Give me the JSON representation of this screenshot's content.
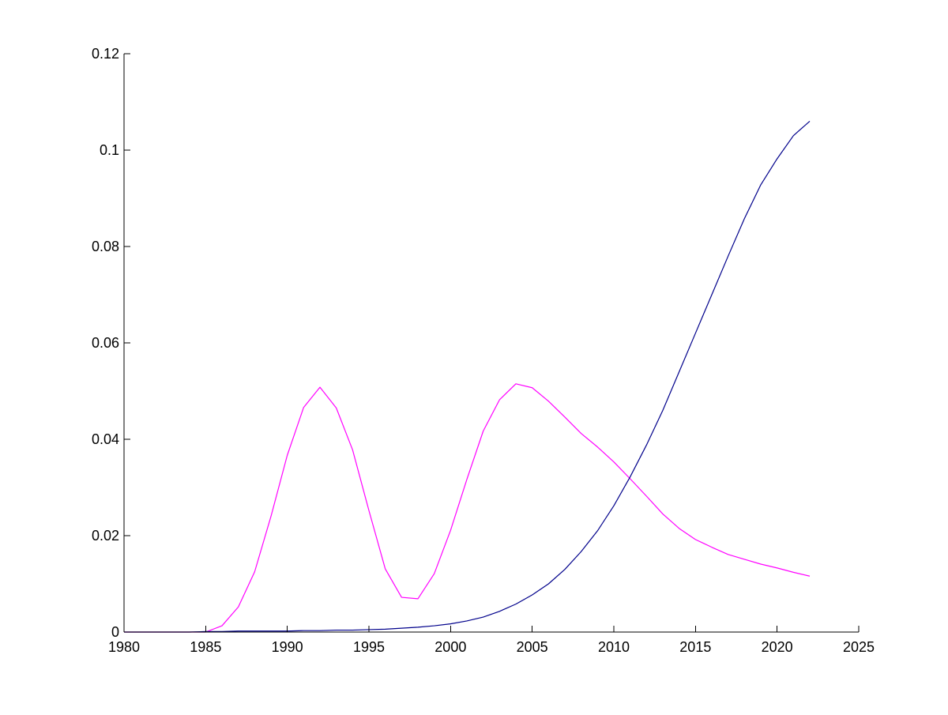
{
  "chart_data": {
    "type": "line",
    "title": "",
    "xlabel": "",
    "ylabel": "",
    "xlim": [
      1980,
      2025
    ],
    "ylim": [
      0,
      0.12
    ],
    "grid": false,
    "legend": "none",
    "x_ticks": [
      1980,
      1985,
      1990,
      1995,
      2000,
      2005,
      2010,
      2015,
      2020,
      2025
    ],
    "x_tick_labels": [
      "1980",
      "1985",
      "1990",
      "1995",
      "2000",
      "2005",
      "2010",
      "2015",
      "2020",
      "2025"
    ],
    "y_ticks": [
      0,
      0.02,
      0.04,
      0.06,
      0.08,
      0.1,
      0.12
    ],
    "y_tick_labels": [
      "0",
      "0.02",
      "0.04",
      "0.06",
      "0.08",
      "0.1",
      "0.12"
    ],
    "x": [
      1980,
      1981,
      1982,
      1983,
      1984,
      1985,
      1986,
      1987,
      1988,
      1989,
      1990,
      1991,
      1992,
      1993,
      1994,
      1995,
      1996,
      1997,
      1998,
      1999,
      2000,
      2001,
      2002,
      2003,
      2004,
      2005,
      2006,
      2007,
      2008,
      2009,
      2010,
      2011,
      2012,
      2013,
      2014,
      2015,
      2016,
      2017,
      2018,
      2019,
      2020,
      2021,
      2022
    ],
    "series": [
      {
        "color": "#ff00ff",
        "values": [
          0,
          0,
          0,
          0,
          0,
          0,
          0.0013,
          0.0052,
          0.0125,
          0.024,
          0.0367,
          0.0466,
          0.0508,
          0.0465,
          0.0378,
          0.0252,
          0.0131,
          0.0072,
          0.0069,
          0.0121,
          0.0211,
          0.0317,
          0.0417,
          0.0482,
          0.0515,
          0.0507,
          0.0479,
          0.0446,
          0.0412,
          0.0384,
          0.0353,
          0.0318,
          0.0282,
          0.0245,
          0.0215,
          0.0192,
          0.0176,
          0.0161,
          0.0151,
          0.0141,
          0.0133,
          0.0124,
          0.0116
        ]
      },
      {
        "color": "#00008b",
        "values": [
          0,
          0,
          0,
          0,
          0,
          0.0001,
          0.0001,
          0.0002,
          0.0002,
          0.0002,
          0.0002,
          0.0003,
          0.0003,
          0.0004,
          0.0004,
          0.0005,
          0.0006,
          0.0008,
          0.001,
          0.0013,
          0.0017,
          0.0023,
          0.0031,
          0.0043,
          0.0058,
          0.0077,
          0.01,
          0.013,
          0.0167,
          0.021,
          0.0262,
          0.0322,
          0.0388,
          0.046,
          0.054,
          0.062,
          0.07,
          0.078,
          0.0858,
          0.0928,
          0.0982,
          0.103,
          0.106
        ]
      }
    ]
  }
}
